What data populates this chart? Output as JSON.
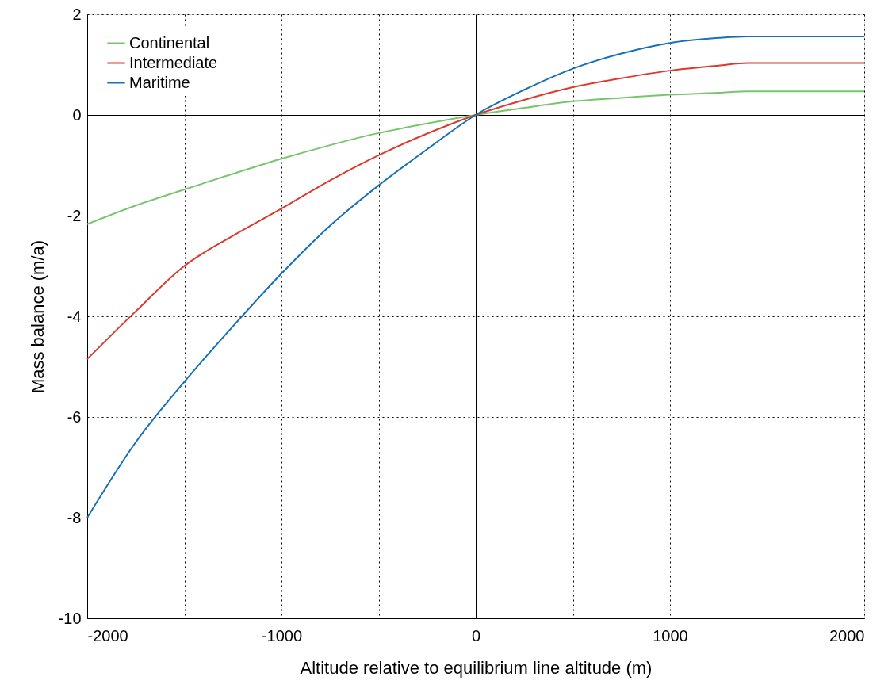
{
  "chart_data": {
    "type": "line",
    "xlabel": "Altitude relative to equilibrium line altitude (m)",
    "ylabel": "Mass balance (m/a)",
    "x": [
      -2000,
      -1750,
      -1500,
      -1250,
      -1000,
      -750,
      -500,
      -250,
      0,
      250,
      500,
      750,
      1000,
      1250,
      1400,
      2000
    ],
    "series": [
      {
        "name": "Continental",
        "color": "#77c66e",
        "values": [
          -2.17,
          -1.8,
          -1.48,
          -1.17,
          -0.87,
          -0.6,
          -0.36,
          -0.17,
          0,
          0.14,
          0.27,
          0.34,
          0.4,
          0.44,
          0.47,
          0.47
        ]
      },
      {
        "name": "Intermediate",
        "color": "#dc3a2c",
        "values": [
          -4.85,
          -3.9,
          -3.0,
          -2.4,
          -1.86,
          -1.3,
          -0.8,
          -0.37,
          0,
          0.3,
          0.55,
          0.73,
          0.88,
          0.98,
          1.03,
          1.03
        ]
      },
      {
        "name": "Maritime",
        "color": "#1570b8",
        "values": [
          -8.0,
          -6.5,
          -5.3,
          -4.2,
          -3.15,
          -2.2,
          -1.4,
          -0.68,
          0,
          0.5,
          0.92,
          1.22,
          1.43,
          1.53,
          1.56,
          1.56
        ]
      }
    ],
    "xlim": [
      -2000,
      2000
    ],
    "ylim": [
      -10,
      2
    ],
    "xticks": [
      -2000,
      {
        "value": -1500,
        "label": null
      },
      -1000,
      {
        "value": -500,
        "label": null
      },
      0,
      {
        "value": 500,
        "label": null
      },
      1000,
      {
        "value": 1500,
        "label": null
      },
      2000
    ],
    "yticks": [
      -10,
      -8,
      -6,
      -4,
      -2,
      0,
      2
    ],
    "grid": true,
    "legend": "top left",
    "marker": "none",
    "line_style": "solid"
  }
}
